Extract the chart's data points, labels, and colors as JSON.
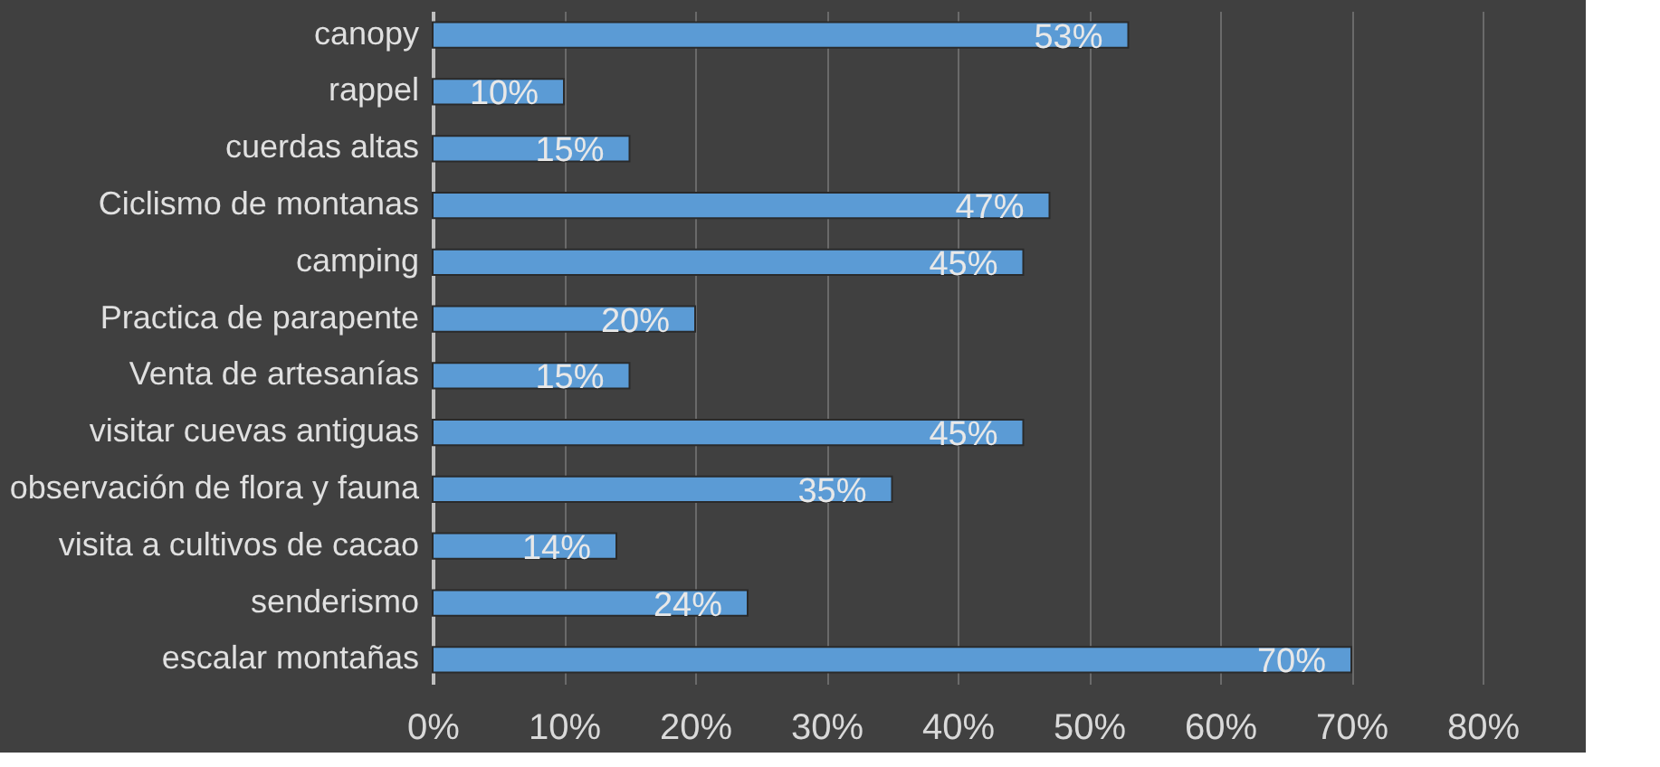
{
  "chart_data": {
    "type": "bar",
    "orientation": "horizontal",
    "categories": [
      "canopy",
      "rappel",
      "cuerdas altas",
      "Ciclismo de montanas",
      "camping",
      "Practica de parapente",
      "Venta de artesanías",
      "visitar cuevas antiguas",
      "observación de flora y fauna",
      "visita a cultivos de cacao",
      "senderismo",
      "escalar montañas"
    ],
    "values": [
      53,
      10,
      15,
      47,
      45,
      20,
      15,
      45,
      35,
      14,
      24,
      70
    ],
    "value_labels": [
      "53%",
      "10%",
      "15%",
      "47%",
      "45%",
      "20%",
      "15%",
      "45%",
      "35%",
      "14%",
      "24%",
      "70%"
    ],
    "color": "#5b9bd5",
    "xlim": [
      0,
      80
    ],
    "xticks": [
      {
        "value": 0,
        "label": "0%"
      },
      {
        "value": 10,
        "label": "10%"
      },
      {
        "value": 20,
        "label": "20%"
      },
      {
        "value": 30,
        "label": "30%"
      },
      {
        "value": 40,
        "label": "40%"
      },
      {
        "value": 50,
        "label": "50%"
      },
      {
        "value": 60,
        "label": "60%"
      },
      {
        "value": 70,
        "label": "70%"
      },
      {
        "value": 80,
        "label": "80%"
      }
    ],
    "grid": "x"
  }
}
